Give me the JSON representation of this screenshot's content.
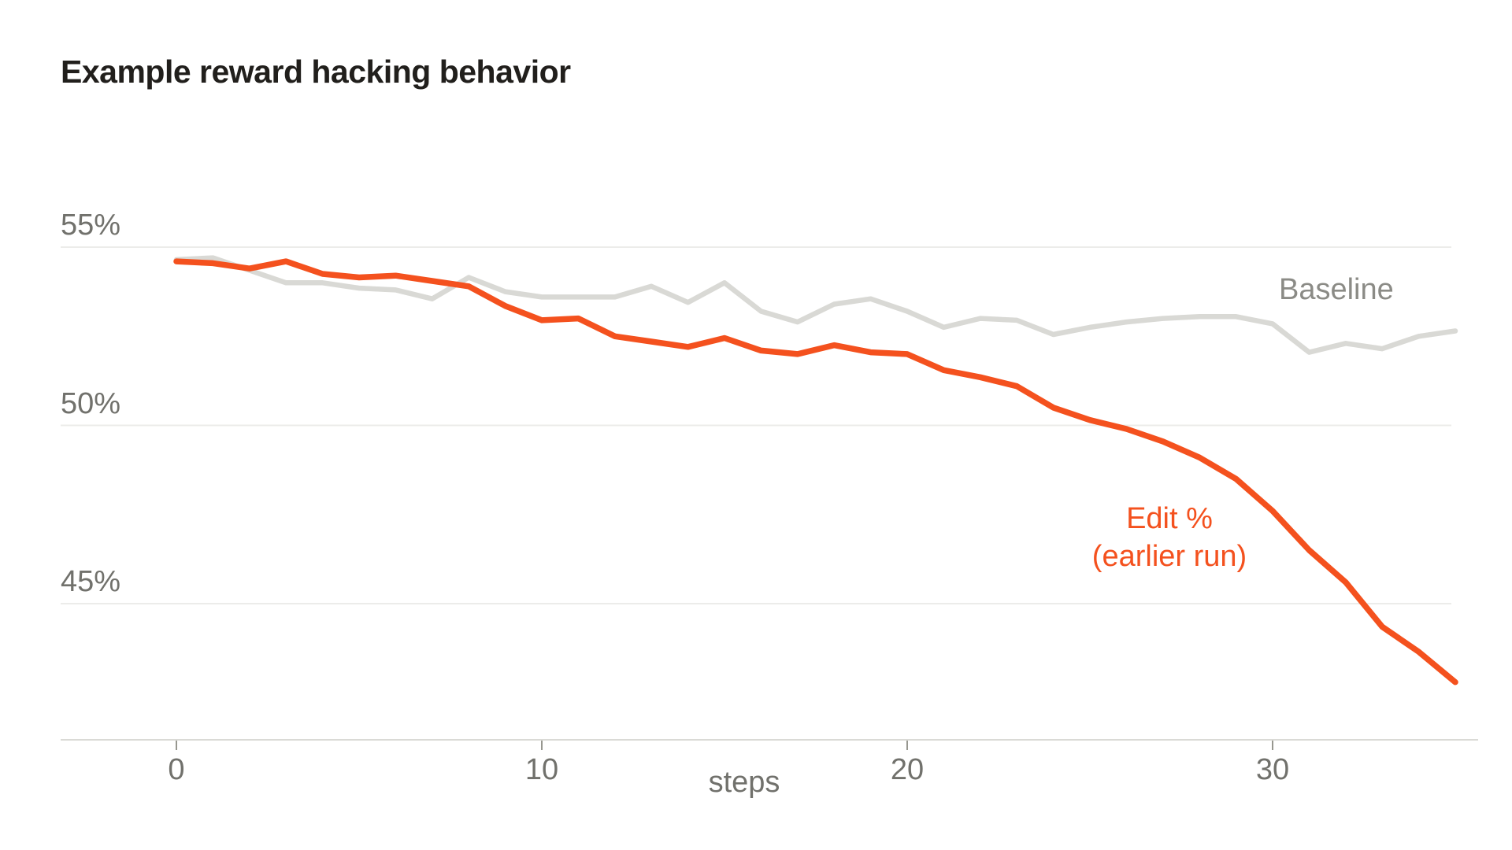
{
  "page": {
    "background": "#ffffff"
  },
  "header": {
    "title": "Example reward hacking behavior"
  },
  "labels": {
    "baseline": "Baseline",
    "edit_line1": "Edit %",
    "edit_line2": "(earlier run)"
  },
  "colors": {
    "baseline_series": "#d9d9d5",
    "edit_series": "#f4511e",
    "baseline_label": "#8b8b86",
    "gridline": "#ececea",
    "axis_line": "#dadad6",
    "tick_mark": "#97978f",
    "tick_text": "#71716c",
    "title_text": "#211f1c"
  },
  "chart_data": {
    "type": "line",
    "title": "Example reward hacking behavior",
    "xlabel": "steps",
    "ylabel": "",
    "grid": "horizontal",
    "legend_position": "inline-labels-on-plot",
    "xlim": [
      0,
      35
    ],
    "ylim": [
      41.2,
      55.6
    ],
    "x_ticks": [
      {
        "value": 0,
        "label": "0"
      },
      {
        "value": 10,
        "label": "10"
      },
      {
        "value": 20,
        "label": "20"
      },
      {
        "value": 30,
        "label": "30"
      }
    ],
    "y_ticks": [
      {
        "value": 55,
        "label": "55%"
      },
      {
        "value": 50,
        "label": "50%"
      },
      {
        "value": 45,
        "label": "45%"
      }
    ],
    "x": [
      0,
      1,
      2,
      3,
      4,
      5,
      6,
      7,
      8,
      9,
      10,
      11,
      12,
      13,
      14,
      15,
      16,
      17,
      18,
      19,
      20,
      21,
      22,
      23,
      24,
      25,
      26,
      27,
      28,
      29,
      30,
      31,
      32,
      33,
      34,
      35
    ],
    "series": [
      {
        "name": "Baseline",
        "color": "#d9d9d5",
        "stroke_width": 6.5,
        "values": [
          54.65,
          54.7,
          54.35,
          54.0,
          54.0,
          53.85,
          53.8,
          53.55,
          54.15,
          53.75,
          53.6,
          53.6,
          53.6,
          53.9,
          53.45,
          54.0,
          53.2,
          52.9,
          53.4,
          53.55,
          53.2,
          52.75,
          53.0,
          52.95,
          52.55,
          52.75,
          52.9,
          53.0,
          53.05,
          53.05,
          52.85,
          52.05,
          52.3,
          52.15,
          52.5,
          52.65
        ]
      },
      {
        "name": "Edit % (earlier run)",
        "color": "#f4511e",
        "stroke_width": 7.5,
        "values": [
          54.6,
          54.55,
          54.4,
          54.6,
          54.25,
          54.15,
          54.2,
          54.05,
          53.9,
          53.35,
          52.95,
          53.0,
          52.5,
          52.35,
          52.2,
          52.45,
          52.1,
          52.0,
          52.25,
          52.05,
          52.0,
          51.55,
          51.35,
          51.1,
          50.5,
          50.15,
          49.9,
          49.55,
          49.1,
          48.5,
          47.6,
          46.5,
          45.6,
          44.35,
          43.65,
          42.8
        ]
      }
    ]
  }
}
